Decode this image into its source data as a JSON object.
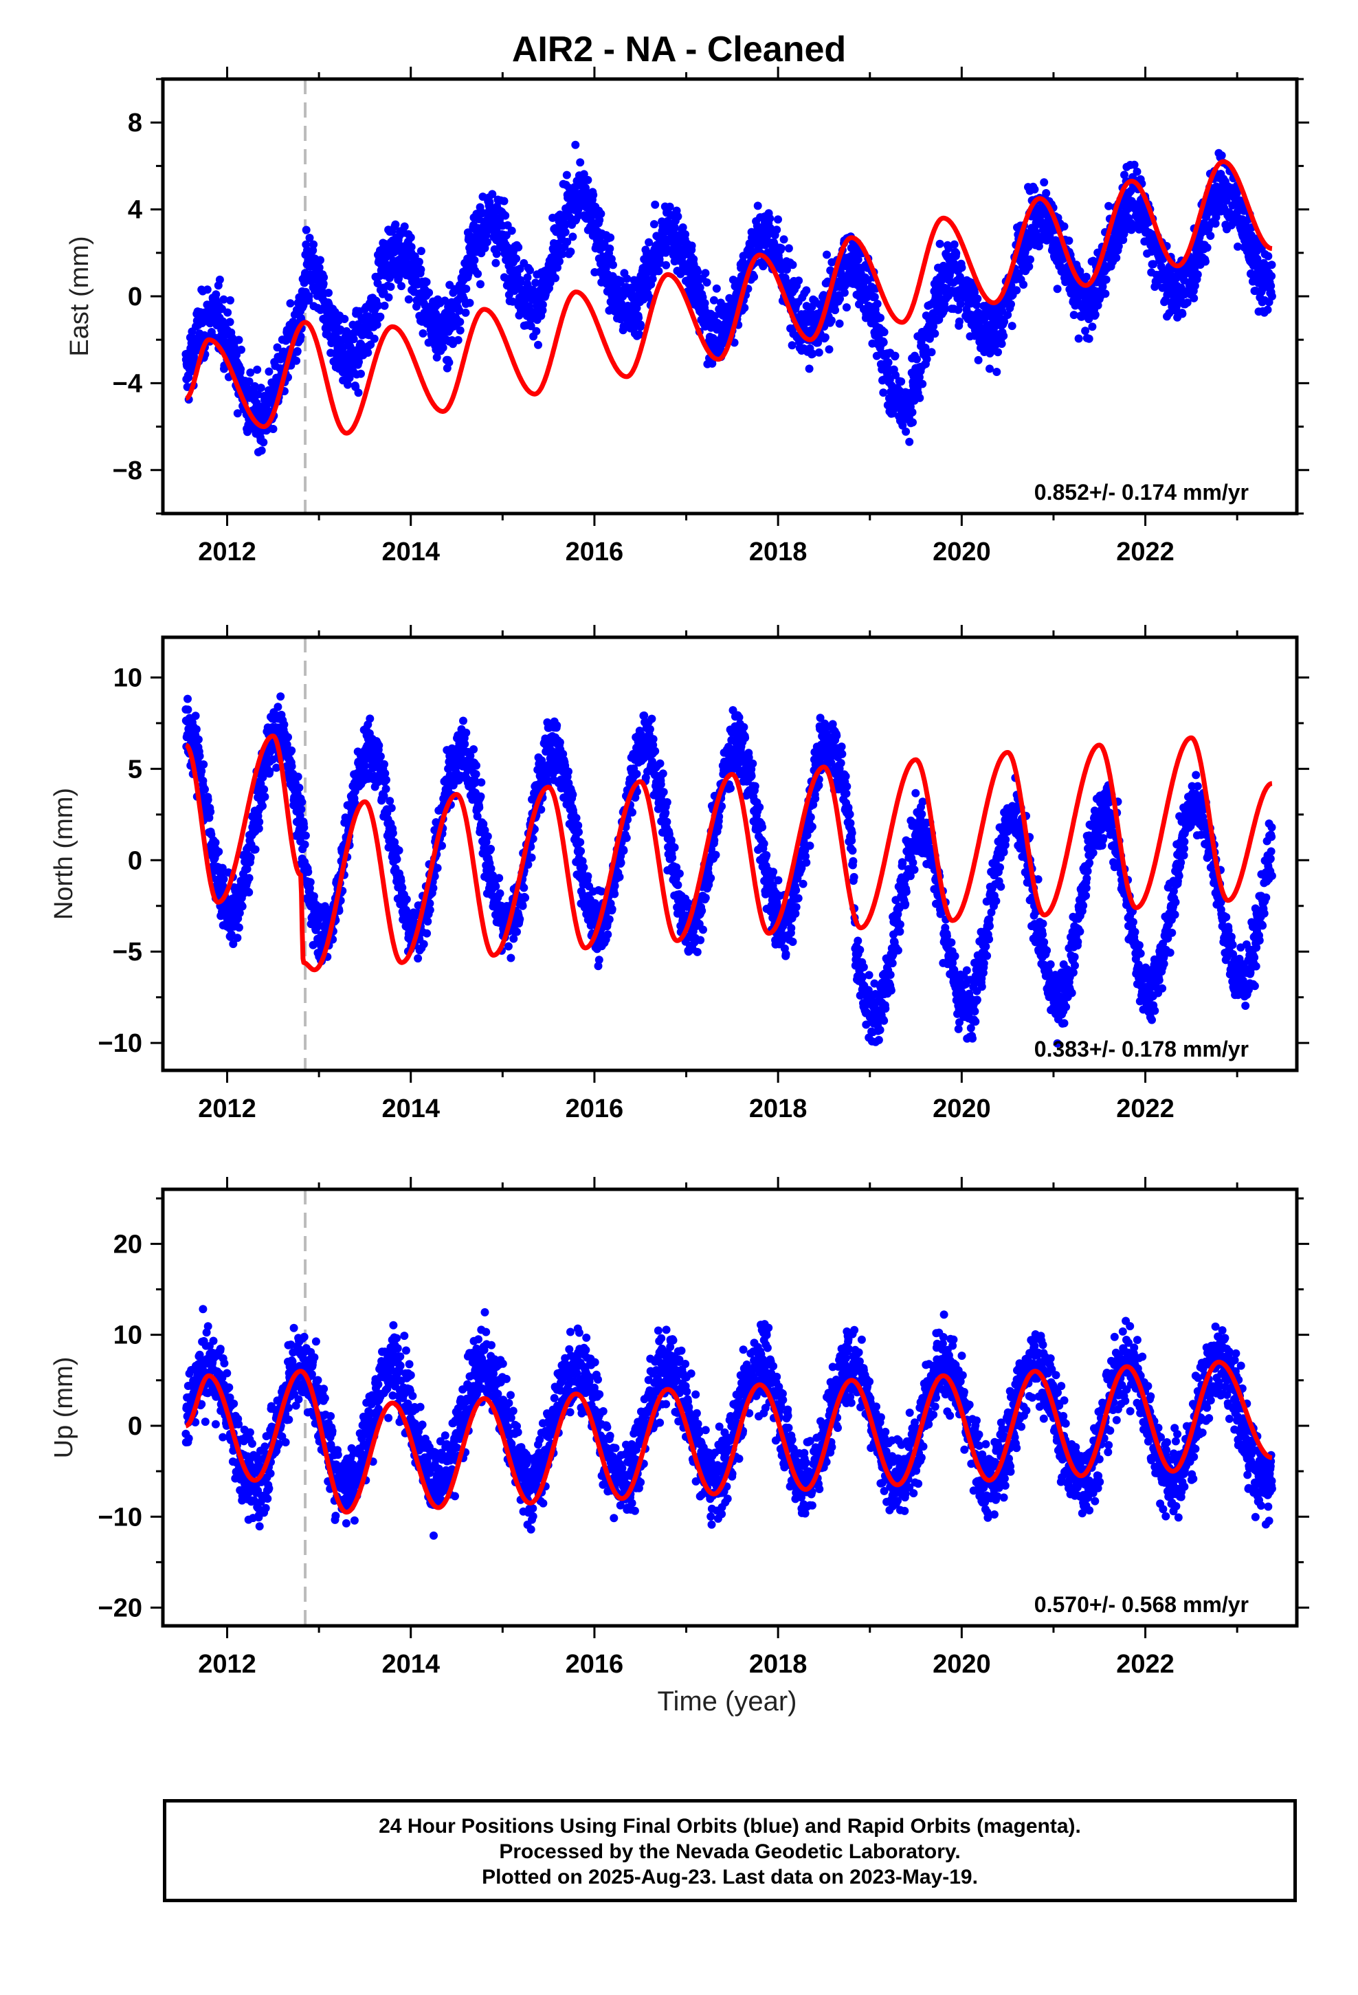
{
  "title": "AIR2  - NA - Cleaned",
  "colors": {
    "points": "#0000ff",
    "fit": "#ff0000",
    "marker_line": "#bbbbbb"
  },
  "x_axis_label": "Time (year)",
  "footer": {
    "line1": "24 Hour Positions Using Final Orbits (blue) and Rapid Orbits (magenta).",
    "line2": "Processed by the Nevada Geodetic Laboratory.",
    "line3": "Plotted on 2025-Aug-23. Last data on 2023-May-19."
  },
  "chart_data": [
    {
      "type": "scatter",
      "title": "AIR2  - NA - Cleaned",
      "ylabel": "East (mm)",
      "xlabel": "",
      "xlim": [
        2011.3,
        2023.65
      ],
      "ylim": [
        -10,
        10
      ],
      "xticks": [
        2012,
        2014,
        2016,
        2018,
        2020,
        2022
      ],
      "yticks": [
        -8,
        -4,
        0,
        4,
        8
      ],
      "rate_text": "0.852+/- 0.174 mm/yr",
      "marker_year": 2012.85,
      "grid": false,
      "points": {
        "x_start": 2011.55,
        "x_end": 2023.38,
        "base_anchors": [
          [
            2011.55,
            -3.0
          ],
          [
            2012.8,
            -3.5
          ],
          [
            2012.86,
            -1.0
          ],
          [
            2013.5,
            -0.5
          ],
          [
            2015.8,
            2.5
          ],
          [
            2017.0,
            0.5
          ],
          [
            2018.5,
            0.5
          ],
          [
            2019.4,
            -3.0
          ],
          [
            2020.6,
            1.5
          ],
          [
            2023.38,
            3.0
          ]
        ],
        "seasonal_amp": 2.2,
        "seasonal_phase_year": 0.85,
        "noise": 1.3
      },
      "fit": {
        "anchors": [
          [
            2011.55,
            -4.7
          ],
          [
            2011.8,
            -2.0
          ],
          [
            2012.4,
            -6.0
          ],
          [
            2012.85,
            -1.2
          ],
          [
            2013.3,
            -6.3
          ],
          [
            2013.8,
            -1.4
          ],
          [
            2014.35,
            -5.3
          ],
          [
            2014.8,
            -0.6
          ],
          [
            2015.35,
            -4.5
          ],
          [
            2015.8,
            0.2
          ],
          [
            2016.35,
            -3.7
          ],
          [
            2016.8,
            1.0
          ],
          [
            2017.35,
            -2.9
          ],
          [
            2017.8,
            1.9
          ],
          [
            2018.35,
            -2.0
          ],
          [
            2018.8,
            2.7
          ],
          [
            2019.35,
            -1.2
          ],
          [
            2019.8,
            3.6
          ],
          [
            2020.35,
            -0.3
          ],
          [
            2020.85,
            4.5
          ],
          [
            2021.35,
            0.5
          ],
          [
            2021.85,
            5.3
          ],
          [
            2022.35,
            1.4
          ],
          [
            2022.85,
            6.2
          ],
          [
            2023.38,
            2.2
          ]
        ]
      }
    },
    {
      "type": "scatter",
      "title": "",
      "ylabel": "North (mm)",
      "xlabel": "",
      "xlim": [
        2011.3,
        2023.65
      ],
      "ylim": [
        -11.5,
        12.2
      ],
      "xticks": [
        2012,
        2014,
        2016,
        2018,
        2020,
        2022
      ],
      "yticks": [
        -10,
        -5,
        0,
        5,
        10
      ],
      "rate_text": "0.383+/- 0.178 mm/yr",
      "marker_year": 2012.85,
      "grid": false,
      "points": {
        "x_start": 2011.55,
        "x_end": 2023.38,
        "base_anchors": [
          [
            2011.55,
            2.0
          ],
          [
            2012.8,
            2.0
          ],
          [
            2012.86,
            1.0
          ],
          [
            2018.8,
            1.5
          ],
          [
            2018.85,
            -3.5
          ],
          [
            2023.38,
            -1.5
          ]
        ],
        "seasonal_amp": 5.0,
        "seasonal_phase_year": 0.55,
        "noise": 1.4
      },
      "fit": {
        "anchors": [
          [
            2011.55,
            6.3
          ],
          [
            2011.9,
            -2.3
          ],
          [
            2012.5,
            6.8
          ],
          [
            2012.8,
            -0.8
          ],
          [
            2012.83,
            -5.6
          ],
          [
            2012.95,
            -6.0
          ],
          [
            2013.5,
            3.2
          ],
          [
            2013.9,
            -5.6
          ],
          [
            2014.5,
            3.6
          ],
          [
            2014.9,
            -5.2
          ],
          [
            2015.5,
            4.0
          ],
          [
            2015.9,
            -4.8
          ],
          [
            2016.5,
            4.3
          ],
          [
            2016.9,
            -4.4
          ],
          [
            2017.5,
            4.7
          ],
          [
            2017.9,
            -4.0
          ],
          [
            2018.5,
            5.1
          ],
          [
            2018.9,
            -3.7
          ],
          [
            2019.5,
            5.5
          ],
          [
            2019.9,
            -3.3
          ],
          [
            2020.5,
            5.9
          ],
          [
            2020.9,
            -3.0
          ],
          [
            2021.5,
            6.3
          ],
          [
            2021.9,
            -2.6
          ],
          [
            2022.5,
            6.7
          ],
          [
            2022.9,
            -2.2
          ],
          [
            2023.38,
            4.2
          ]
        ]
      }
    },
    {
      "type": "scatter",
      "title": "",
      "ylabel": "Up (mm)",
      "xlabel": "Time (year)",
      "xlim": [
        2011.3,
        2023.65
      ],
      "ylim": [
        -22,
        26
      ],
      "xticks": [
        2012,
        2014,
        2016,
        2018,
        2020,
        2022
      ],
      "yticks": [
        -20,
        -10,
        0,
        10,
        20
      ],
      "rate_text": "0.570+/- 0.568 mm/yr",
      "marker_year": 2012.85,
      "grid": false,
      "points": {
        "x_start": 2011.55,
        "x_end": 2023.38,
        "base_anchors": [
          [
            2011.55,
            0.0
          ],
          [
            2023.38,
            0.5
          ]
        ],
        "seasonal_amp": 6.5,
        "seasonal_phase_year": 0.8,
        "noise": 3.6
      },
      "fit": {
        "anchors": [
          [
            2011.55,
            0.0
          ],
          [
            2011.8,
            5.5
          ],
          [
            2012.3,
            -6.0
          ],
          [
            2012.8,
            6.0
          ],
          [
            2013.3,
            -9.5
          ],
          [
            2013.8,
            2.5
          ],
          [
            2014.3,
            -9.0
          ],
          [
            2014.8,
            3.0
          ],
          [
            2015.3,
            -8.5
          ],
          [
            2015.8,
            3.5
          ],
          [
            2016.3,
            -8.0
          ],
          [
            2016.8,
            4.0
          ],
          [
            2017.3,
            -7.5
          ],
          [
            2017.8,
            4.5
          ],
          [
            2018.3,
            -7.0
          ],
          [
            2018.8,
            5.0
          ],
          [
            2019.3,
            -6.5
          ],
          [
            2019.8,
            5.5
          ],
          [
            2020.3,
            -6.0
          ],
          [
            2020.8,
            6.0
          ],
          [
            2021.3,
            -5.5
          ],
          [
            2021.8,
            6.5
          ],
          [
            2022.3,
            -5.0
          ],
          [
            2022.8,
            7.0
          ],
          [
            2023.38,
            -3.5
          ]
        ]
      }
    }
  ]
}
